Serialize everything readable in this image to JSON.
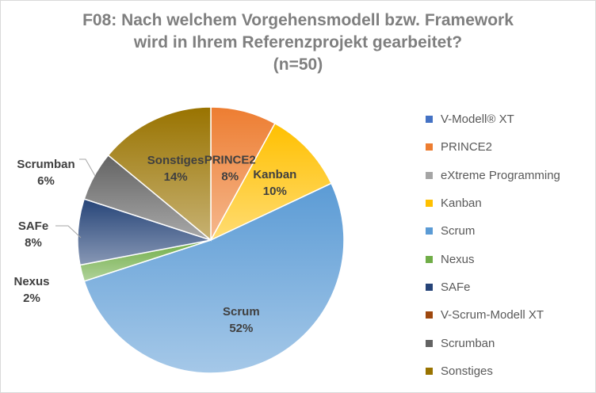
{
  "chart_data": {
    "type": "pie",
    "title_lines": [
      "F08: Nach welchem Vorgehensmodell bzw. Framework",
      "wird in Ihrem Referenzprojekt gearbeitet?",
      "(n=50)"
    ],
    "legend_position": "right",
    "categories": [
      "V-Modell® XT",
      "PRINCE2",
      "eXtreme Programming",
      "Kanban",
      "Scrum",
      "Nexus",
      "SAFe",
      "V-Scrum-Modell XT",
      "Scrumban",
      "Sonstiges"
    ],
    "values": [
      0,
      8,
      0,
      10,
      52,
      2,
      8,
      0,
      6,
      14
    ],
    "colors": [
      "#4472c4",
      "#ed7d31",
      "#a5a5a5",
      "#ffc000",
      "#5b9bd5",
      "#70ad47",
      "#264478",
      "#9e480e",
      "#636363",
      "#997300"
    ],
    "slice_labels": [
      {
        "name": "PRINCE2",
        "value": "8%"
      },
      {
        "name": "Kanban",
        "value": "10%"
      },
      {
        "name": "Scrum",
        "value": "52%"
      },
      {
        "name": "Nexus",
        "value": "2%"
      },
      {
        "name": "SAFe",
        "value": "8%"
      },
      {
        "name": "Scrumban",
        "value": "6%"
      },
      {
        "name": "Sonstiges",
        "value": "14%"
      }
    ]
  }
}
